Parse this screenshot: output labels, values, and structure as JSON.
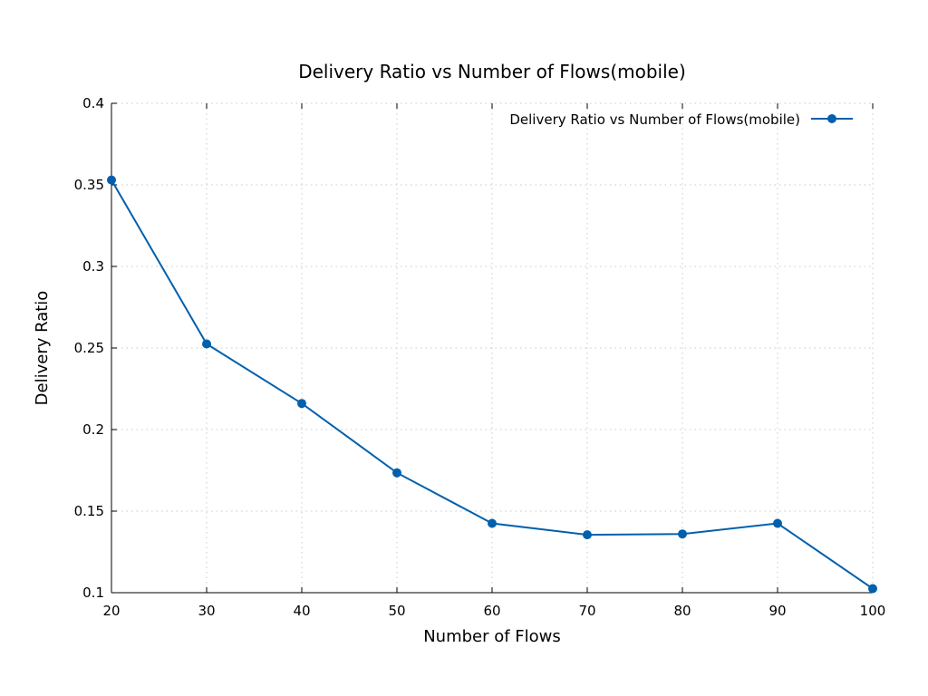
{
  "chart_data": {
    "type": "line",
    "title": "Delivery Ratio vs Number of Flows(mobile)",
    "xlabel": "Number of Flows",
    "ylabel": "Delivery Ratio",
    "xlim": [
      20,
      100
    ],
    "ylim": [
      0.1,
      0.4
    ],
    "x_ticks": [
      20,
      30,
      40,
      50,
      60,
      70,
      80,
      90,
      100
    ],
    "y_ticks": [
      0.1,
      0.15,
      0.2,
      0.25,
      0.3,
      0.35,
      0.4
    ],
    "grid": true,
    "legend_position": "top-right",
    "series": [
      {
        "name": "Delivery Ratio vs Number of Flows(mobile)",
        "color": "#0060ad",
        "marker": "circle",
        "x": [
          20,
          30,
          40,
          50,
          60,
          70,
          80,
          90,
          100
        ],
        "y": [
          0.353,
          0.2525,
          0.216,
          0.1735,
          0.1425,
          0.1355,
          0.136,
          0.1425,
          0.1025
        ]
      }
    ]
  }
}
